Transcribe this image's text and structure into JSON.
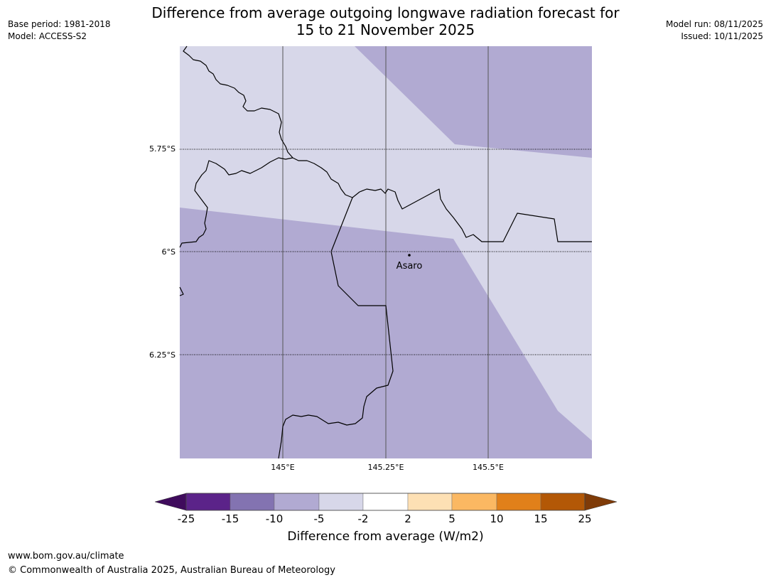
{
  "title_line1": "Difference from average outgoing longwave radiation forecast for",
  "title_line2": "15 to 21 November 2025",
  "meta_left": [
    "Base period: 1981-2018",
    "Model: ACCESS-S2"
  ],
  "meta_right": [
    "Model run: 08/11/2025",
    "Issued: 10/11/2025"
  ],
  "map": {
    "lat_labels": [
      "5.75°S",
      "6°S",
      "6.25°S"
    ],
    "lon_labels": [
      "145°E",
      "145.25°E",
      "145.5°E"
    ],
    "place": {
      "name": "Asaro"
    },
    "colors": {
      "band_minus5_minus2": "#d7d7e9",
      "band_minus10_minus5": "#b1aad2"
    }
  },
  "colorbar": {
    "title": "Difference from average (W/m2)",
    "tick_labels": [
      "-25",
      "-15",
      "-10",
      "-5",
      "-2",
      "2",
      "5",
      "10",
      "15",
      "25"
    ],
    "colors": [
      "#3f0b5c",
      "#5b2389",
      "#8373b1",
      "#b1aad2",
      "#d7d7e9",
      "#ffffff",
      "#fde0b4",
      "#fbb862",
      "#e1801a",
      "#b35806",
      "#7f3b08"
    ]
  },
  "footer": {
    "url": "www.bom.gov.au/climate",
    "copyright": "© Commonwealth of Australia 2025, Australian Bureau of Meteorology"
  }
}
